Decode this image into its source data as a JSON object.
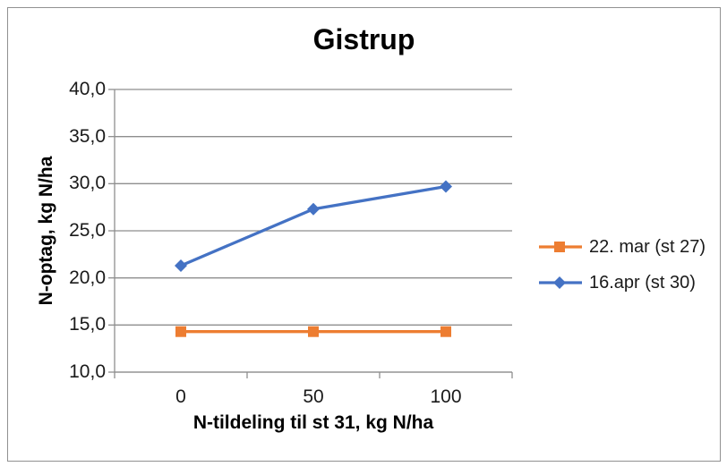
{
  "frame": {
    "background": "#ffffff",
    "border_color": "#919191"
  },
  "chart_data": {
    "type": "line",
    "title": "Gistrup",
    "xlabel": "N-tildeling til st 31, kg N/ha",
    "ylabel": "N-optag, kg N/ha",
    "categories": [
      "0",
      "50",
      "100"
    ],
    "y_tick_values": [
      10,
      15,
      20,
      25,
      30,
      35,
      40
    ],
    "y_tick_labels": [
      "10,0",
      "15,0",
      "20,0",
      "25,0",
      "30,0",
      "35,0",
      "40,0"
    ],
    "ylim": [
      10,
      40
    ],
    "grid": true,
    "legend_position": "right",
    "series": [
      {
        "name": "22. mar (st 27)",
        "values": [
          14.3,
          14.3,
          14.3
        ],
        "color": "#ED7D31",
        "marker": "square"
      },
      {
        "name": "16.apr (st 30)",
        "values": [
          21.3,
          27.3,
          29.7
        ],
        "color": "#4472C4",
        "marker": "diamond"
      }
    ],
    "colors": {
      "gridline": "#8e8e8e",
      "axis": "#8e8e8e",
      "text": "#1a1a1a",
      "title": "#000000"
    }
  }
}
